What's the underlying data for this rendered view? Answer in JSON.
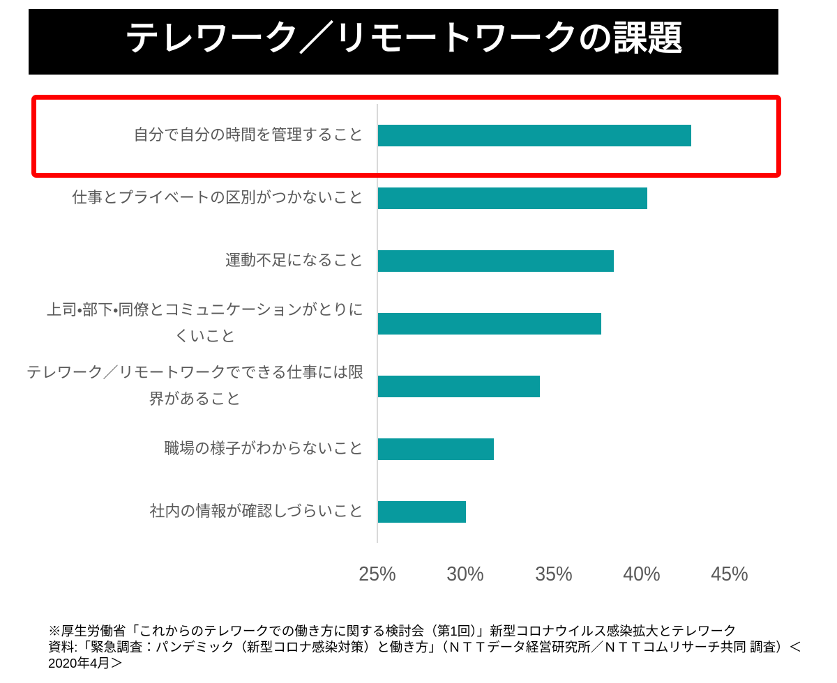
{
  "title": {
    "text": "テレワーク／リモートワークの課題"
  },
  "chart_data": {
    "type": "bar",
    "orientation": "horizontal",
    "title": "テレワーク／リモートワークの課題",
    "categories": [
      "自分で自分の時間を管理すること",
      "仕事とプライベートの区別がつかないこと",
      "運動不足になること",
      "上司・部下・同僚とコミュニケーションがとりに\nくいこと",
      "テレワーク／リモートワークでできる仕事には限\n界があること",
      "職場の様子がわからないこと",
      "社内の情報が確認しづらいこと"
    ],
    "values": [
      42.8,
      40.3,
      38.4,
      37.7,
      34.2,
      31.6,
      30.0
    ],
    "unit": "%",
    "xlabel": "",
    "ylabel": "",
    "xlim": [
      25,
      48
    ],
    "x_ticks": [
      25,
      30,
      35,
      40,
      45
    ],
    "x_tick_labels": [
      "25%",
      "30%",
      "35%",
      "40%",
      "45%"
    ],
    "grid": false,
    "legend": false,
    "bar_color": "#089a9e",
    "axis_line_color": "#d9d9d9",
    "tick_label_color": "#595959",
    "category_label_color": "#595959",
    "highlight_box_color": "#fe0000",
    "highlighted_category_index": 0
  },
  "source_note": {
    "lines": [
      "※厚生労働省「これからのテレワークでの働き方に関する検討会（第1回）」新型コロナウイルス感染拡大とテレワーク",
      "資料:「緊急調査：パンデミック（新型コロナ感染対策）と働き方」（ＮＴＴデータ経営研究所／ＮＴＴコムリサーチ共同 調査）＜",
      "2020年4月＞"
    ]
  }
}
